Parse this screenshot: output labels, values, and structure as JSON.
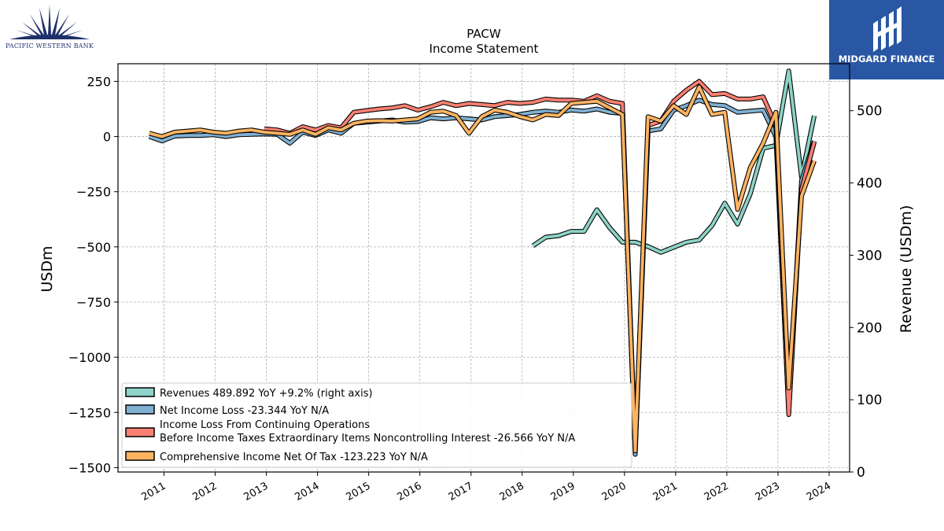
{
  "branding": {
    "left_logo_text": "PACIFIC WESTERN BANK",
    "right_logo_text": "MIDGARD FINANCE",
    "left_logo_color": "#1f2f6b",
    "right_logo_bg": "#2957a4"
  },
  "chart_data": {
    "type": "line",
    "title": "PACW",
    "subtitle": "Income Statement",
    "ylabel": "USDm",
    "ylabel_right": "Revenue (USDm)",
    "ylim": [
      -1520,
      330
    ],
    "ylim_right": [
      0,
      565
    ],
    "yticks": [
      {
        "v": 250,
        "label": "250"
      },
      {
        "v": 0,
        "label": "0"
      },
      {
        "v": -250,
        "label": "−250"
      },
      {
        "v": -500,
        "label": "−500"
      },
      {
        "v": -750,
        "label": "−750"
      },
      {
        "v": -1000,
        "label": "−1000"
      },
      {
        "v": -1250,
        "label": "−1250"
      },
      {
        "v": -1500,
        "label": "−1500"
      }
    ],
    "yticks_right": [
      {
        "v": 0,
        "label": "0"
      },
      {
        "v": 100,
        "label": "100"
      },
      {
        "v": 200,
        "label": "200"
      },
      {
        "v": 300,
        "label": "300"
      },
      {
        "v": 400,
        "label": "400"
      },
      {
        "v": 500,
        "label": "500"
      }
    ],
    "xlim": [
      2010.1,
      2024.4
    ],
    "xticks": [
      {
        "v": 2011,
        "label": "2011"
      },
      {
        "v": 2012,
        "label": "2012"
      },
      {
        "v": 2013,
        "label": "2013"
      },
      {
        "v": 2014,
        "label": "2014"
      },
      {
        "v": 2015,
        "label": "2015"
      },
      {
        "v": 2016,
        "label": "2016"
      },
      {
        "v": 2017,
        "label": "2017"
      },
      {
        "v": 2018,
        "label": "2018"
      },
      {
        "v": 2019,
        "label": "2019"
      },
      {
        "v": 2020,
        "label": "2020"
      },
      {
        "v": 2021,
        "label": "2021"
      },
      {
        "v": 2022,
        "label": "2022"
      },
      {
        "v": 2023,
        "label": "2023"
      },
      {
        "v": 2024,
        "label": "2024"
      }
    ],
    "grid": true,
    "legend_position": "lower-left",
    "series": [
      {
        "name": "Revenues  489.892 YoY +9.2% (right axis)",
        "color": "#8dd3c7",
        "axis": "right",
        "x": [
          2018.21,
          2018.46,
          2018.71,
          2018.96,
          2019.21,
          2019.46,
          2019.71,
          2019.96,
          2020.21,
          2020.46,
          2020.71,
          2020.96,
          2021.21,
          2021.46,
          2021.71,
          2021.96,
          2022.21,
          2022.46,
          2022.71,
          2022.96,
          2023.21,
          2023.46,
          2023.71
        ],
        "y": [
          313,
          325,
          327,
          333,
          333,
          363,
          338,
          318,
          318,
          312,
          304,
          311,
          318,
          321,
          341,
          372,
          343,
          385,
          448,
          452,
          555,
          408,
          493
        ]
      },
      {
        "name": "Net Income Loss  -23.344 YoY N/A",
        "color": "#80b1d3",
        "axis": "left",
        "x": [
          2010.71,
          2010.96,
          2011.21,
          2011.46,
          2011.71,
          2011.96,
          2012.21,
          2012.46,
          2012.71,
          2012.96,
          2013.21,
          2013.46,
          2013.71,
          2013.96,
          2014.21,
          2014.46,
          2014.71,
          2014.96,
          2015.21,
          2015.46,
          2015.71,
          2015.96,
          2016.21,
          2016.46,
          2016.71,
          2016.96,
          2017.21,
          2017.46,
          2017.71,
          2017.96,
          2018.21,
          2018.46,
          2018.71,
          2018.96,
          2019.21,
          2019.46,
          2019.71,
          2019.96,
          2020.21,
          2020.46,
          2020.71,
          2020.96,
          2021.21,
          2021.46,
          2021.71,
          2021.96,
          2022.21,
          2022.46,
          2022.71,
          2022.96,
          2023.21,
          2023.46,
          2023.71
        ],
        "y": [
          0,
          -20,
          2,
          5,
          5,
          8,
          0,
          8,
          10,
          12,
          10,
          -30,
          20,
          5,
          30,
          15,
          60,
          65,
          70,
          75,
          65,
          68,
          85,
          80,
          85,
          80,
          75,
          90,
          95,
          100,
          110,
          115,
          110,
          120,
          115,
          125,
          110,
          105,
          -1440,
          25,
          35,
          120,
          140,
          165,
          145,
          140,
          110,
          115,
          120,
          0,
          -1250,
          -200,
          -20
        ]
      },
      {
        "name": "Income Loss From Continuing Operations\nBefore Income Taxes Extraordinary Items Noncontrolling Interest  -26.566 YoY N/A",
        "color": "#fb8072",
        "axis": "left",
        "x": [
          2012.96,
          2013.21,
          2013.46,
          2013.71,
          2013.96,
          2014.21,
          2014.46,
          2014.71,
          2014.96,
          2015.21,
          2015.46,
          2015.71,
          2015.96,
          2016.21,
          2016.46,
          2016.71,
          2016.96,
          2017.21,
          2017.46,
          2017.71,
          2017.96,
          2018.21,
          2018.46,
          2018.71,
          2018.96,
          2019.21,
          2019.46,
          2019.71,
          2019.96,
          2020.21,
          2020.46,
          2020.71,
          2020.96,
          2021.21,
          2021.46,
          2021.71,
          2021.96,
          2022.21,
          2022.46,
          2022.71,
          2022.96,
          2023.21,
          2023.46,
          2023.71
        ],
        "y": [
          35,
          30,
          15,
          45,
          30,
          50,
          40,
          110,
          118,
          125,
          130,
          140,
          120,
          135,
          155,
          140,
          150,
          145,
          140,
          155,
          150,
          155,
          170,
          165,
          165,
          160,
          185,
          160,
          150,
          -1420,
          50,
          70,
          160,
          210,
          250,
          190,
          195,
          170,
          170,
          180,
          50,
          -1260,
          -240,
          -25
        ]
      },
      {
        "name": "Comprehensive Income Net Of Tax  -123.223 YoY N/A",
        "color": "#fdb462",
        "axis": "left",
        "x": [
          2010.71,
          2010.96,
          2011.21,
          2011.46,
          2011.71,
          2011.96,
          2012.21,
          2012.46,
          2012.71,
          2012.96,
          2013.21,
          2013.46,
          2013.71,
          2013.96,
          2014.21,
          2014.46,
          2014.71,
          2014.96,
          2015.21,
          2015.46,
          2015.71,
          2015.96,
          2016.21,
          2016.46,
          2016.71,
          2016.96,
          2017.21,
          2017.46,
          2017.71,
          2017.96,
          2018.21,
          2018.46,
          2018.71,
          2018.96,
          2019.21,
          2019.46,
          2019.71,
          2019.96,
          2020.21,
          2020.46,
          2020.71,
          2020.96,
          2021.21,
          2021.46,
          2021.71,
          2021.96,
          2022.21,
          2022.46,
          2022.71,
          2022.96,
          2023.21,
          2023.46,
          2023.71
        ],
        "y": [
          15,
          0,
          20,
          25,
          30,
          20,
          15,
          25,
          30,
          20,
          15,
          10,
          30,
          10,
          40,
          30,
          60,
          70,
          72,
          70,
          75,
          80,
          110,
          115,
          95,
          15,
          90,
          120,
          110,
          90,
          75,
          100,
          95,
          150,
          155,
          160,
          130,
          100,
          -1425,
          90,
          70,
          140,
          100,
          225,
          100,
          110,
          -330,
          -140,
          -30,
          110,
          -1140,
          -270,
          -110
        ]
      }
    ]
  }
}
